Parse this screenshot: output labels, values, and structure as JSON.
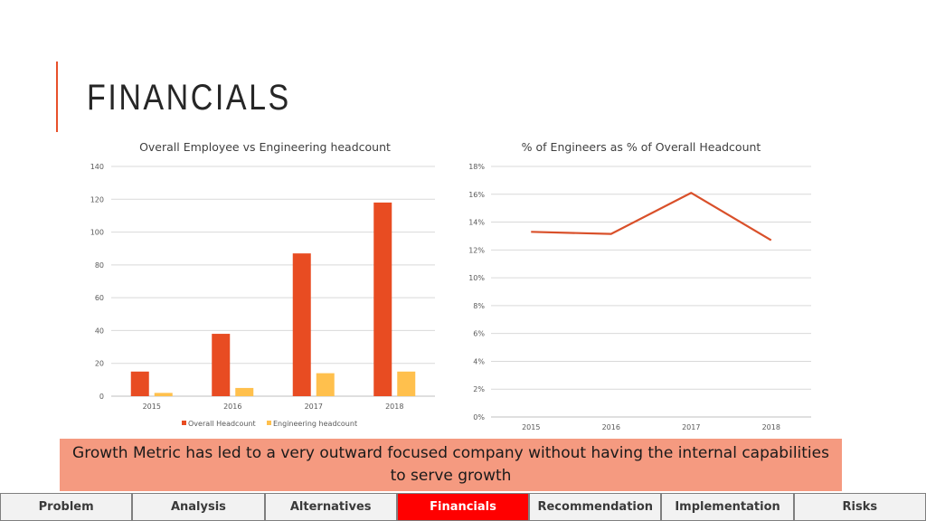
{
  "header": {
    "title": "FINANCIALS"
  },
  "chart_data": [
    {
      "type": "bar",
      "title": "Overall Employee vs Engineering headcount",
      "categories": [
        "2015",
        "2016",
        "2017",
        "2018"
      ],
      "series": [
        {
          "name": "Overall Headcount",
          "values": [
            15,
            38,
            87,
            118
          ],
          "color": "#e84c22"
        },
        {
          "name": "Engineering headcount",
          "values": [
            2,
            5,
            14,
            15
          ],
          "color": "#ffc04d"
        }
      ],
      "ylim": [
        0,
        140
      ],
      "yticks": [
        "0",
        "20",
        "40",
        "60",
        "80",
        "100",
        "120",
        "140"
      ],
      "grid": true,
      "legend": "bottom"
    },
    {
      "type": "line",
      "title": "% of Engineers as % of Overall Headcount",
      "categories": [
        "2015",
        "2016",
        "2017",
        "2018"
      ],
      "series": [
        {
          "values": [
            13.3,
            13.15,
            16.1,
            12.7
          ],
          "color": "#d9502a"
        }
      ],
      "ylim": [
        0,
        18
      ],
      "yticks": [
        "0%",
        "2%",
        "4%",
        "6%",
        "8%",
        "10%",
        "12%",
        "14%",
        "16%",
        "18%"
      ],
      "grid": true
    }
  ],
  "callout": {
    "text": "Growth Metric has led to a very outward focused company without having the internal capabilities to serve growth"
  },
  "nav": {
    "items": [
      {
        "label": "Problem",
        "active": false
      },
      {
        "label": "Analysis",
        "active": false
      },
      {
        "label": "Alternatives",
        "active": false
      },
      {
        "label": "Financials",
        "active": true
      },
      {
        "label": "Recommendation",
        "active": false
      },
      {
        "label": "Implementation",
        "active": false
      },
      {
        "label": "Risks",
        "active": false
      }
    ],
    "active_color": "#ff0000"
  }
}
